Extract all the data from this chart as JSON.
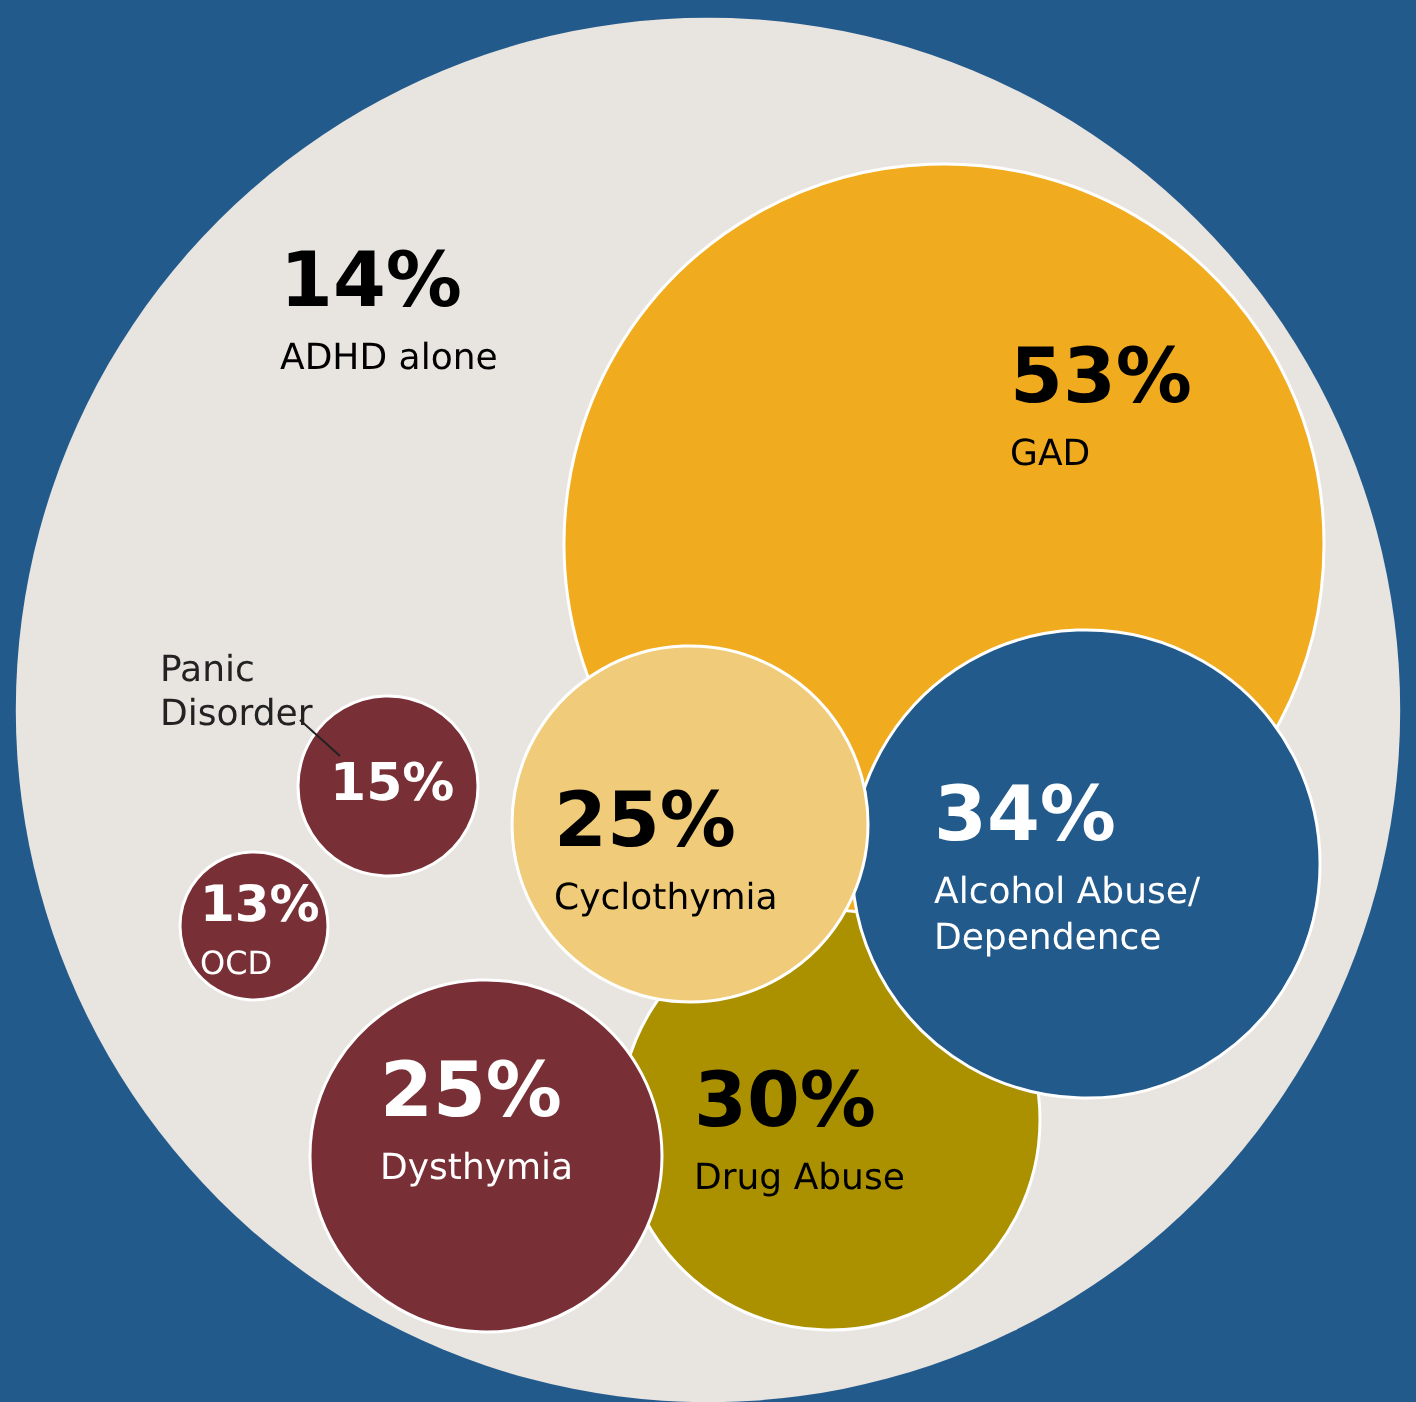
{
  "chart_data": {
    "type": "other",
    "categories": [
      "ADHD alone",
      "GAD",
      "Drug Abuse",
      "Alcohol Abuse/ Dependence",
      "Cyclothymia",
      "Dysthymia",
      "Panic Disorder",
      "OCD"
    ],
    "values": [
      14,
      53,
      30,
      34,
      25,
      25,
      15,
      13
    ],
    "value_labels": [
      "14%",
      "53%",
      "30%",
      "34%",
      "25%",
      "25%",
      "15%",
      "13%"
    ],
    "colors": [
      "#e8e4e0",
      "#f0ab1e",
      "#ab9000",
      "#235a8c",
      "#f0cb7a",
      "#782f35",
      "#782f35",
      "#782f35"
    ]
  }
}
